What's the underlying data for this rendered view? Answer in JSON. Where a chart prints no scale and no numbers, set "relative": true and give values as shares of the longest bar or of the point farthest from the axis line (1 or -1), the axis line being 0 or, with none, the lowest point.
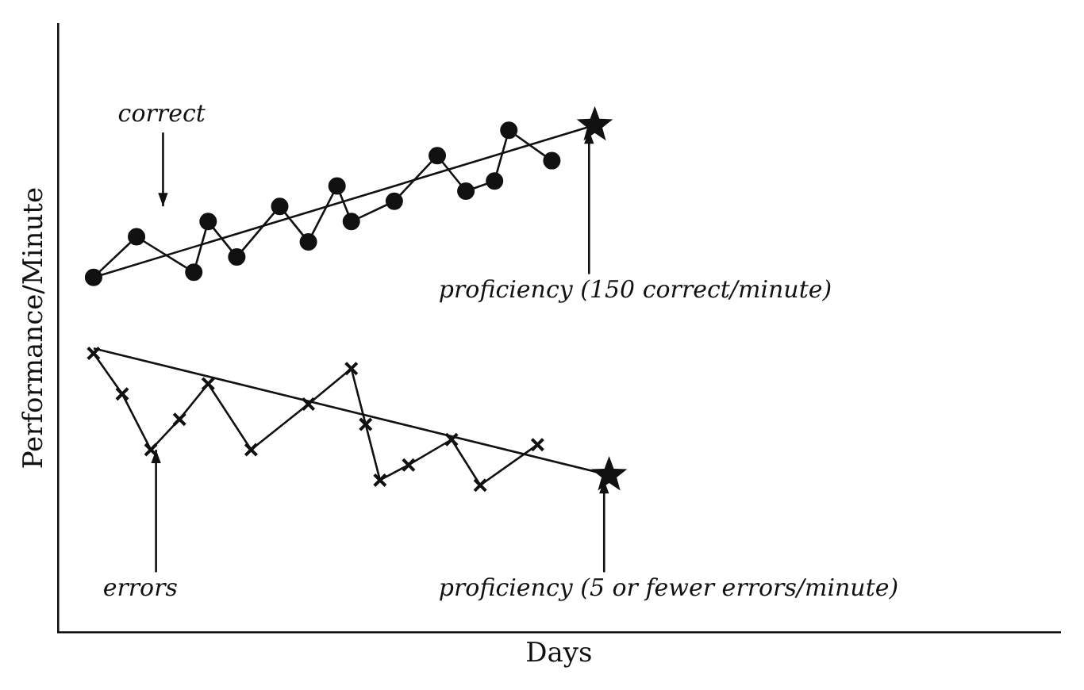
{
  "chart_data": {
    "type": "line",
    "relative": true,
    "xlabel": "Days",
    "ylabel": "Performance/Minute",
    "grid": false,
    "legend": false,
    "tick_labels": false,
    "categories": [
      null,
      null,
      null,
      null,
      null,
      null,
      null,
      null,
      null,
      null,
      null,
      null,
      null,
      null,
      null,
      null,
      null,
      null,
      null,
      null,
      null,
      null,
      null,
      null,
      null,
      null,
      null,
      null,
      null,
      null,
      null,
      null,
      null,
      null,
      null,
      null,
      null,
      null,
      null,
      null,
      null,
      null,
      null,
      null,
      null,
      null,
      null,
      null,
      null,
      null,
      null,
      null,
      null,
      null,
      null,
      null,
      null,
      null,
      null,
      null,
      null,
      null,
      null,
      null,
      null,
      null,
      null,
      null,
      null,
      null
    ],
    "annotations": [
      "correct",
      "proficiency (150 correct/minute)",
      "errors",
      "proficiency (5 or fewer errors/minute)"
    ],
    "series": [
      {
        "type": "line",
        "marker": "circle",
        "color": "#111111",
        "values": [
          null,
          null,
          0.7,
          null,
          null,
          0.78,
          null,
          null,
          null,
          0.71,
          0.81,
          null,
          0.74,
          null,
          null,
          0.84,
          null,
          0.77,
          null,
          0.88,
          0.81,
          null,
          null,
          0.85,
          null,
          null,
          0.94,
          null,
          0.87,
          null,
          0.89,
          0.99,
          null,
          null,
          0.93,
          null,
          null,
          null,
          null,
          null,
          null,
          null,
          null,
          null,
          null,
          null,
          null,
          null,
          null,
          null,
          null,
          null,
          null,
          null,
          null,
          null,
          null,
          null,
          null,
          null,
          null,
          null,
          null,
          null,
          null,
          null,
          null,
          null,
          null,
          null
        ]
      },
      {
        "type": "line",
        "marker": "cross",
        "color": "#111111",
        "values": [
          null,
          null,
          0.55,
          null,
          0.47,
          null,
          0.36,
          null,
          0.42,
          null,
          0.49,
          null,
          null,
          0.36,
          null,
          null,
          null,
          0.45,
          null,
          null,
          0.52,
          0.41,
          0.3,
          null,
          0.33,
          null,
          null,
          0.38,
          null,
          0.29,
          null,
          null,
          null,
          0.37,
          null,
          null,
          null,
          null,
          null,
          null,
          null,
          null,
          null,
          null,
          null,
          null,
          null,
          null,
          null,
          null,
          null,
          null,
          null,
          null,
          null,
          null,
          null,
          null,
          null,
          null,
          null,
          null,
          null,
          null,
          null,
          null,
          null,
          null,
          null,
          null
        ]
      },
      {
        "type": "line",
        "marker": "star",
        "color": "#111111",
        "values": [
          null,
          null,
          0.7,
          null,
          null,
          null,
          null,
          null,
          null,
          null,
          null,
          null,
          null,
          null,
          null,
          null,
          null,
          null,
          null,
          null,
          null,
          null,
          null,
          null,
          null,
          null,
          null,
          null,
          null,
          null,
          null,
          null,
          null,
          null,
          null,
          null,
          null,
          1.0,
          null,
          null,
          null,
          null,
          null,
          null,
          null,
          null,
          null,
          null,
          null,
          null,
          null,
          null,
          null,
          null,
          null,
          null,
          null,
          null,
          null,
          null,
          null,
          null,
          null,
          null,
          null,
          null,
          null,
          null,
          null,
          null
        ]
      },
      {
        "type": "line",
        "marker": "star",
        "color": "#111111",
        "values": [
          null,
          null,
          0.56,
          null,
          null,
          null,
          null,
          null,
          null,
          null,
          null,
          null,
          null,
          null,
          null,
          null,
          null,
          null,
          null,
          null,
          null,
          null,
          null,
          null,
          null,
          null,
          null,
          null,
          null,
          null,
          null,
          null,
          null,
          null,
          null,
          null,
          null,
          null,
          0.31,
          null,
          null,
          null,
          null,
          null,
          null,
          null,
          null,
          null,
          null,
          null,
          null,
          null,
          null,
          null,
          null,
          null,
          null,
          null,
          null,
          null,
          null,
          null,
          null,
          null,
          null,
          null,
          null,
          null,
          null,
          null
        ]
      }
    ]
  }
}
